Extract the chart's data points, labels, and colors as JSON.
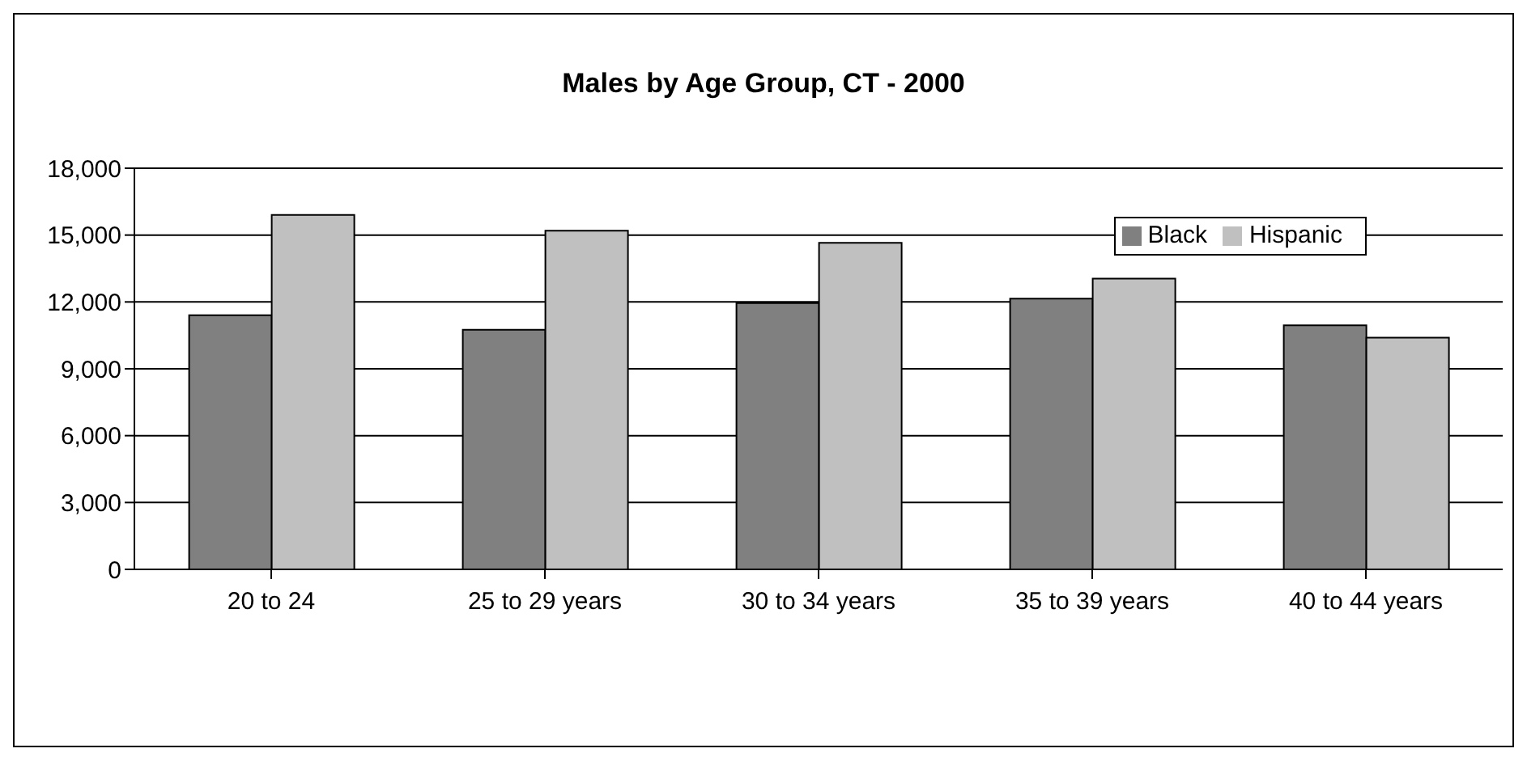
{
  "chart_data": {
    "type": "bar",
    "title": "Males by Age Group, CT - 2000",
    "categories": [
      "20 to 24",
      "25 to 29 years",
      "30 to 34 years",
      "35 to 39 years",
      "40 to 44 years"
    ],
    "series": [
      {
        "name": "Black",
        "color": "#808080",
        "values": [
          11400,
          10750,
          11950,
          12150,
          10950
        ]
      },
      {
        "name": "Hispanic",
        "color": "#c0c0c0",
        "values": [
          15900,
          15200,
          14650,
          13050,
          10400
        ]
      }
    ],
    "ylim": [
      0,
      18000
    ],
    "yticks": [
      {
        "value": 0,
        "label": "0"
      },
      {
        "value": 3000,
        "label": "3,000"
      },
      {
        "value": 6000,
        "label": "6,000"
      },
      {
        "value": 9000,
        "label": "9,000"
      },
      {
        "value": 12000,
        "label": "12,000"
      },
      {
        "value": 15000,
        "label": "15,000"
      },
      {
        "value": 18000,
        "label": "18,000"
      }
    ],
    "grid": "y",
    "legend": "top right"
  }
}
